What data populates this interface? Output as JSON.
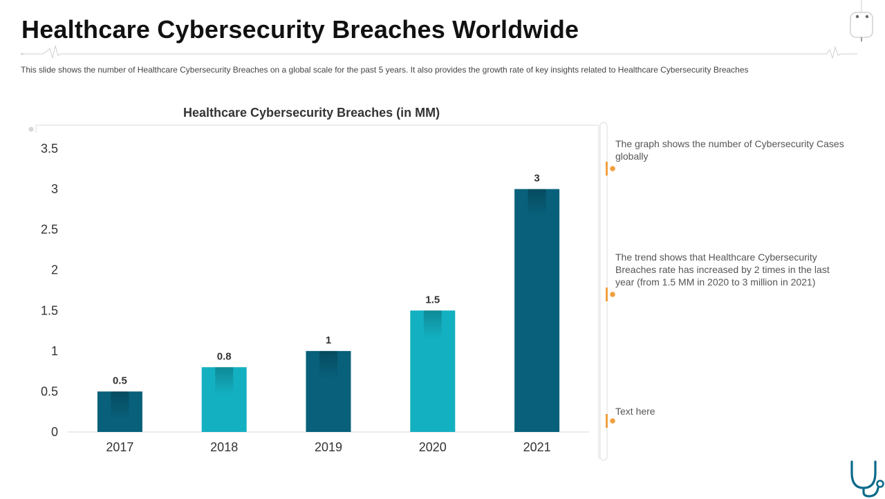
{
  "header": {
    "title": "Healthcare Cybersecurity Breaches Worldwide",
    "subtitle": "This slide shows the number of Healthcare Cybersecurity Breaches on a global scale for the past 5 years. It also provides the growth rate of key insights related to Healthcare Cybersecurity Breaches"
  },
  "chart_data": {
    "type": "bar",
    "title": "Healthcare Cybersecurity Breaches (in MM)",
    "categories": [
      "2017",
      "2018",
      "2019",
      "2020",
      "2021"
    ],
    "values": [
      0.5,
      0.8,
      1,
      1.5,
      3
    ],
    "data_labels": [
      "0.5",
      "0.8",
      "1",
      "1.5",
      "3"
    ],
    "yticks": [
      "0",
      "0.5",
      "1",
      "1.5",
      "2",
      "2.5",
      "3",
      "3.5"
    ],
    "ylim": [
      0,
      3.5
    ],
    "xlabel": "",
    "ylabel": "",
    "grid": false,
    "legend": "none",
    "bar_colors": [
      "#08607a",
      "#13b0c1",
      "#08607a",
      "#13b0c1",
      "#08607a"
    ]
  },
  "notes": [
    "The graph shows the number of Cybersecurity Cases globally",
    "The trend shows that Healthcare Cybersecurity Breaches rate has increased by 2 times in the last year (from 1.5 MM in 2020 to 3 million in 2021)",
    "Text here"
  ],
  "colors": {
    "dark_teal": "#08607a",
    "light_teal": "#13b0c1",
    "accent_orange": "#f0a040",
    "icon_blue": "#0b6a8a"
  }
}
